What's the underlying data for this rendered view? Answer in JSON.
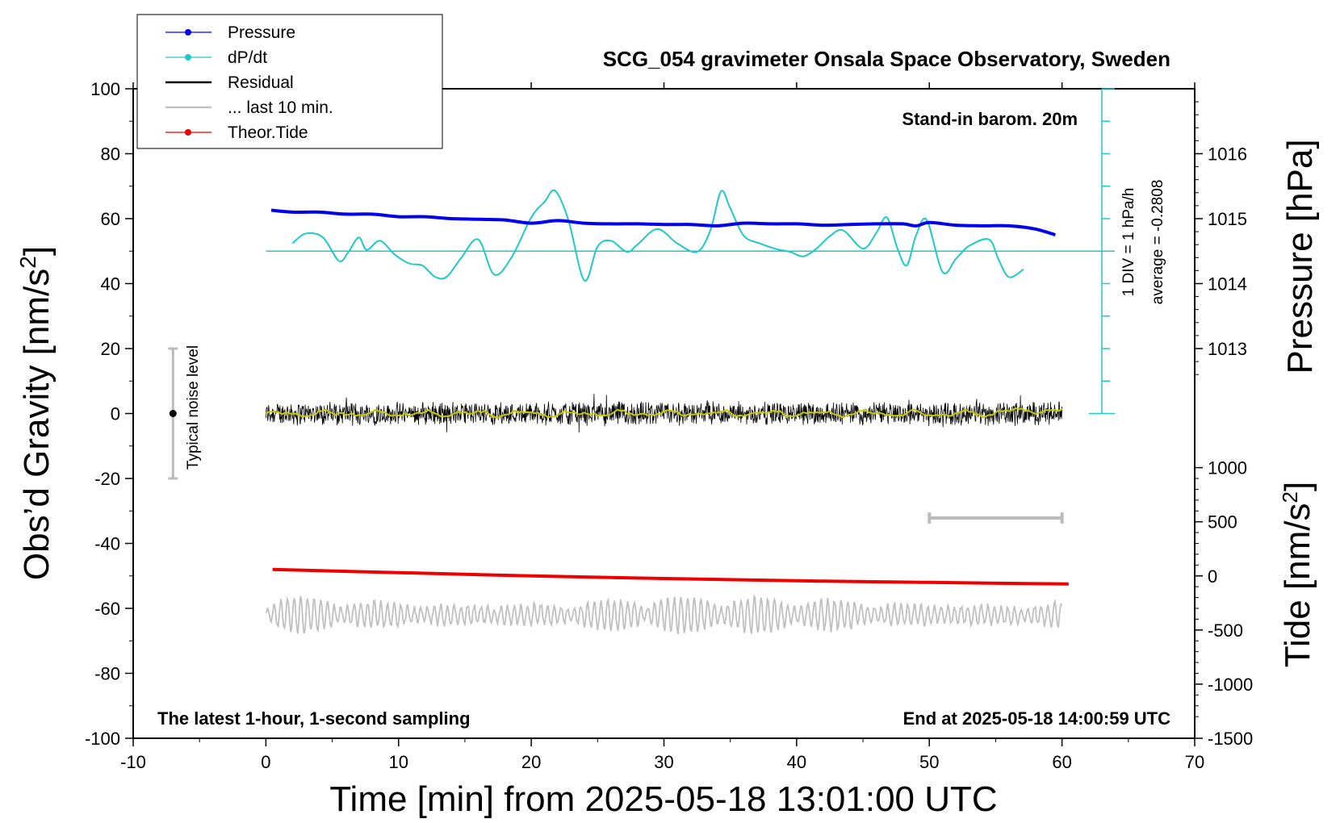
{
  "chart_data": {
    "type": "line",
    "title": "SCG_054 gravimeter Onsala Space Observatory, Sweden",
    "xlabel": "Time [min] from 2025-05-18 13:01:00 UTC",
    "ylabel_left_main": "Obs’d Gravity [nm/s",
    "ylabel_left_sup": "2",
    "ylabel_left_end": "]",
    "ylabel_right_pressure": "Pressure [hPa]",
    "ylabel_right_tide_main": "Tide [nm/s",
    "ylabel_right_tide_sup": "2",
    "ylabel_right_tide_end": "]",
    "xlim": [
      -10,
      70
    ],
    "ylim_left": [
      -100,
      100
    ],
    "x_ticks": [
      "-10",
      "0",
      "10",
      "20",
      "30",
      "40",
      "50",
      "60",
      "70"
    ],
    "y_ticks_left": [
      "100",
      "80",
      "60",
      "40",
      "20",
      "0",
      "-20",
      "-40",
      "-60",
      "-80",
      "-100"
    ],
    "pressure_ticks": [
      "1016",
      "1015",
      "1014",
      "1013"
    ],
    "pressure_tick_values": [
      1016,
      1015,
      1014,
      1013
    ],
    "tide_ticks": [
      "1000",
      "500",
      "0",
      "-500",
      "-1000",
      "-1500"
    ],
    "tide_tick_values": [
      1000,
      500,
      0,
      -500,
      -1000,
      -1500
    ],
    "annotations": {
      "barometer": "Stand-in barom. 20m",
      "div": "1 DIV = 1 hPa/h",
      "average": "average = -0.2808",
      "noise": "Typical noise level",
      "latest": "The latest 1-hour, 1-second sampling",
      "end_time": "End at 2025-05-18 14:00:59 UTC"
    },
    "legend": {
      "placement": "top-left",
      "entries": [
        {
          "label": "Pressure",
          "color": "#0000ee"
        },
        {
          "label": "dP/dt",
          "color": "#20c8c8"
        },
        {
          "label": "Residual",
          "color": "#000000"
        },
        {
          "label": "... last 10 min.",
          "color": "#c0c0c0"
        },
        {
          "label": "Theor.Tide",
          "color": "#ee0000"
        }
      ]
    },
    "series": [
      {
        "name": "Pressure",
        "color": "#0000ee",
        "x": [
          0.4,
          2,
          4,
          6,
          8,
          10,
          12,
          14,
          16,
          18,
          20,
          22,
          24,
          26,
          28,
          30,
          32,
          34,
          36,
          38,
          40,
          42,
          44,
          46,
          48,
          49,
          50,
          52,
          54,
          56,
          58,
          59.5
        ],
        "y": [
          1015.13,
          1015.1,
          1015.1,
          1015.07,
          1015.07,
          1015.03,
          1015.03,
          1015.0,
          1014.99,
          1014.98,
          1014.93,
          1014.97,
          1014.93,
          1014.92,
          1014.92,
          1014.91,
          1014.91,
          1014.89,
          1014.93,
          1014.92,
          1014.92,
          1014.9,
          1014.91,
          1014.92,
          1014.92,
          1014.89,
          1014.94,
          1014.9,
          1014.89,
          1014.89,
          1014.84,
          1014.75
        ]
      },
      {
        "name": "dP/dt",
        "color": "#20c8c8",
        "x": [
          2,
          3,
          4.3,
          5.5,
          6.2,
          7,
          7.6,
          8.6,
          9.7,
          10.8,
          11.8,
          12.7,
          13.6,
          14.7,
          16,
          17.2,
          18.5,
          20,
          21,
          21.8,
          22.8,
          24,
          25,
          26,
          27.2,
          28,
          29.5,
          31,
          32.5,
          33.5,
          34.3,
          35,
          36,
          37.2,
          38.5,
          39.5,
          40.5,
          41.5,
          42.5,
          43.5,
          45,
          46,
          46.8,
          47.6,
          48.3,
          49,
          49.8,
          51,
          52,
          53,
          54.5,
          55.2,
          56,
          57.1
        ],
        "y": [
          0.6,
          1.35,
          1.05,
          -0.75,
          -0.1,
          1.05,
          0.1,
          0.8,
          -0.25,
          -0.95,
          -1.1,
          -1.95,
          -2.0,
          -0.55,
          0.9,
          -1.8,
          -0.5,
          2.6,
          3.8,
          4.65,
          2.4,
          -2.25,
          0.35,
          0.8,
          -0.05,
          0.5,
          1.7,
          0.6,
          -0.05,
          1.6,
          4.6,
          3.3,
          1.2,
          0.6,
          0.15,
          -0.05,
          -0.4,
          0.2,
          1.15,
          1.6,
          0.2,
          1.4,
          2.6,
          0.2,
          -1.1,
          1.2,
          2.4,
          -1.6,
          -0.6,
          0.4,
          0.9,
          -0.6,
          -2.0,
          -1.4
        ]
      },
      {
        "name": "Residual",
        "color": "#000000",
        "x": [
          0,
          60
        ],
        "y": [
          0,
          0
        ]
      },
      {
        "name": "Theor.Tide",
        "color": "#ee0000",
        "x": [
          0.5,
          10,
          20,
          30,
          40,
          50,
          60.5
        ],
        "y": [
          -48,
          -49,
          -50,
          -50.8,
          -51.5,
          -52,
          -52.5
        ]
      },
      {
        "name": "... last 10 min.",
        "color": "#c0c0c0",
        "x": [
          0,
          60
        ],
        "y": [
          -62,
          -62
        ]
      }
    ],
    "dpdt_reference": {
      "pressure_scale_min": 0,
      "tick_divisions": 10
    },
    "noise_bar": {
      "x": -7,
      "y_center": 0,
      "y_low": -20,
      "y_high": 20
    },
    "scale_bar": {
      "x_start": 50,
      "x_end": 60
    }
  }
}
